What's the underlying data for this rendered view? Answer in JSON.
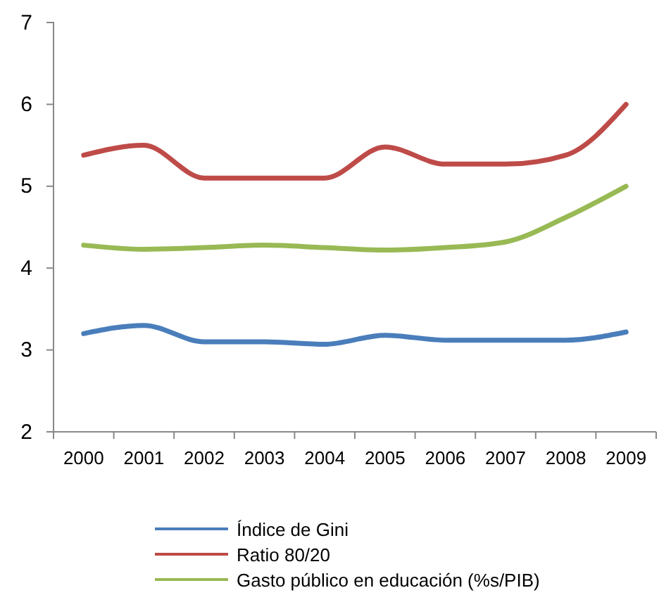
{
  "chart_data": {
    "type": "line",
    "categories": [
      "2000",
      "2001",
      "2002",
      "2003",
      "2004",
      "2005",
      "2006",
      "2007",
      "2008",
      "2009"
    ],
    "series": [
      {
        "name": "Índice de Gini",
        "color": "#4a7ebb",
        "values": [
          3.2,
          3.3,
          3.1,
          3.1,
          3.07,
          3.18,
          3.12,
          3.12,
          3.12,
          3.22
        ]
      },
      {
        "name": "Ratio 80/20",
        "color": "#be4b48",
        "values": [
          5.38,
          5.5,
          5.1,
          5.1,
          5.1,
          5.48,
          5.27,
          5.27,
          5.38,
          6.0
        ]
      },
      {
        "name": "Gasto público en educación (%s/PIB)",
        "color": "#98b954",
        "values": [
          4.28,
          4.23,
          4.25,
          4.28,
          4.25,
          4.22,
          4.25,
          4.32,
          4.62,
          5.0
        ]
      }
    ],
    "ylim": [
      2,
      7
    ],
    "yticks": [
      2,
      3,
      4,
      5,
      6,
      7
    ],
    "grid": false,
    "legend": "bottom",
    "marker": "none",
    "line_style": "solid"
  }
}
